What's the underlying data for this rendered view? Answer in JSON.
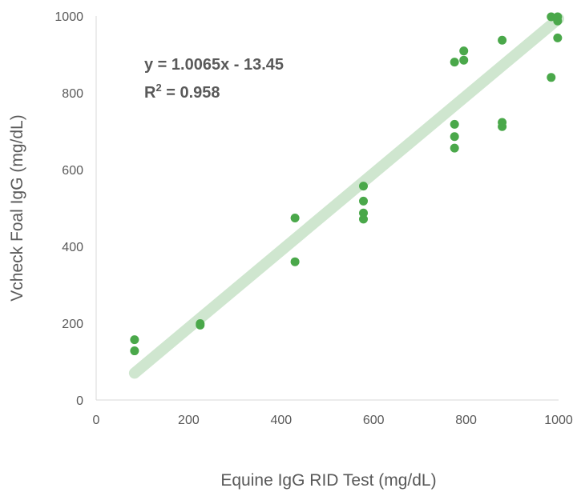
{
  "chart_data": {
    "type": "scatter",
    "xlabel": "Equine IgG RID Test (mg/dL)",
    "ylabel": "Vcheck Foal IgG (mg/dL)",
    "xlim": [
      0,
      1000
    ],
    "ylim": [
      0,
      1000
    ],
    "x_ticks": [
      "0",
      "200",
      "400",
      "600",
      "800",
      "1000"
    ],
    "y_ticks": [
      "0",
      "200",
      "400",
      "600",
      "800",
      "1000"
    ],
    "grid": false,
    "point_color": "#4aa84a",
    "trendline_color": "#cfe6cf",
    "trendline": {
      "slope": 1.0065,
      "intercept": -13.45,
      "x_range": [
        83,
        1000
      ],
      "equation": "y = 1.0065x - 13.45",
      "r2_prefix": "R",
      "r2_sup": "2",
      "r2_suffix": " = 0.958"
    },
    "points": [
      {
        "x": 83,
        "y": 157
      },
      {
        "x": 83,
        "y": 128
      },
      {
        "x": 225,
        "y": 199
      },
      {
        "x": 225,
        "y": 195
      },
      {
        "x": 430,
        "y": 474
      },
      {
        "x": 430,
        "y": 360
      },
      {
        "x": 578,
        "y": 557
      },
      {
        "x": 578,
        "y": 518
      },
      {
        "x": 578,
        "y": 487
      },
      {
        "x": 578,
        "y": 471
      },
      {
        "x": 775,
        "y": 880
      },
      {
        "x": 775,
        "y": 718
      },
      {
        "x": 775,
        "y": 686
      },
      {
        "x": 775,
        "y": 656
      },
      {
        "x": 795,
        "y": 909
      },
      {
        "x": 795,
        "y": 885
      },
      {
        "x": 878,
        "y": 937
      },
      {
        "x": 878,
        "y": 723
      },
      {
        "x": 878,
        "y": 712
      },
      {
        "x": 984,
        "y": 998
      },
      {
        "x": 984,
        "y": 840
      },
      {
        "x": 998,
        "y": 998
      },
      {
        "x": 998,
        "y": 987
      },
      {
        "x": 998,
        "y": 943
      }
    ]
  }
}
